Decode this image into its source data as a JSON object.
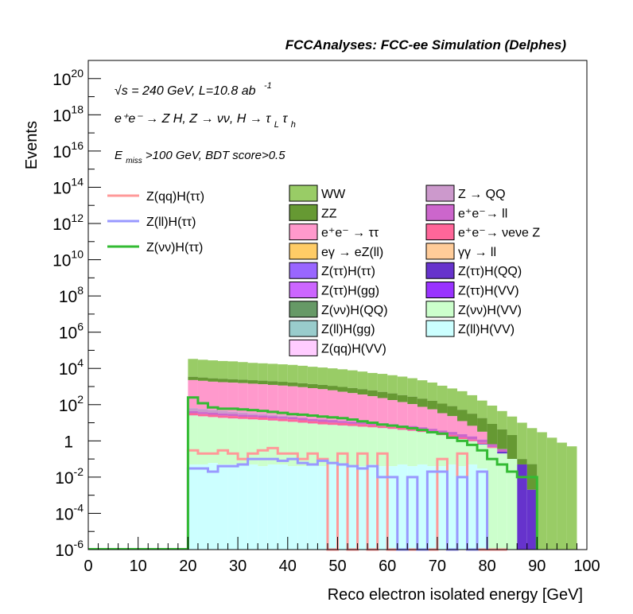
{
  "chart_data": {
    "type": "bar",
    "title": "FCCAnalyses: FCC-ee Simulation (Delphes)",
    "xlabel": "Reco electron isolated energy [GeV]",
    "ylabel": "Events",
    "xlim": [
      0,
      100
    ],
    "ylim": [
      1e-06,
      1e+21
    ],
    "y_scale": "log",
    "x_ticks": [
      "0",
      "10",
      "20",
      "30",
      "40",
      "50",
      "60",
      "70",
      "80",
      "90",
      "100"
    ],
    "y_ticks": [
      {
        "base": "10",
        "exp": "-6"
      },
      {
        "base": "10",
        "exp": "-4"
      },
      {
        "base": "10",
        "exp": "-2"
      },
      {
        "base": "1",
        "exp": ""
      },
      {
        "base": "10",
        "exp": "2"
      },
      {
        "base": "10",
        "exp": "4"
      },
      {
        "base": "10",
        "exp": "6"
      },
      {
        "base": "10",
        "exp": "8"
      },
      {
        "base": "10",
        "exp": "10"
      },
      {
        "base": "10",
        "exp": "12"
      },
      {
        "base": "10",
        "exp": "14"
      },
      {
        "base": "10",
        "exp": "16"
      },
      {
        "base": "10",
        "exp": "18"
      },
      {
        "base": "10",
        "exp": "20"
      }
    ],
    "annotations": {
      "line1": "√s = 240 GeV, L=10.8 ab",
      "line1_sup": "-1",
      "line2": "e⁺e⁻ → Z H, Z → νν, H → τ",
      "line2_sub_L": "L",
      "line2_tau": "τ",
      "line2_sub_h": "h",
      "line3_E": "E",
      "line3_sub": "miss",
      "line3_rest": ">100 GeV, BDT score>0.5"
    },
    "bin_width": 2,
    "stack": [
      {
        "name": "WW",
        "color": "#99cc66",
        "x": [
          20,
          22,
          24,
          26,
          28,
          30,
          32,
          34,
          36,
          38,
          40,
          42,
          44,
          46,
          48,
          50,
          52,
          54,
          56,
          58,
          60,
          62,
          64,
          66,
          68,
          70,
          72,
          74,
          76,
          78,
          80,
          82,
          84,
          86,
          88,
          90,
          92,
          94,
          96
        ],
        "values": [
          30000,
          27000,
          25000,
          23000,
          22000,
          20000,
          18000,
          17000,
          16000,
          15000,
          14000,
          12500,
          11000,
          10000,
          9000,
          8000,
          7000,
          6000,
          5000,
          4500,
          3800,
          3200,
          2600,
          2000,
          1500,
          1000,
          700,
          500,
          300,
          150,
          80,
          40,
          20,
          10,
          5,
          3,
          1.5,
          0.8,
          0.5
        ]
      },
      {
        "name": "ZZ",
        "color": "#669933",
        "x": [
          20,
          22,
          24,
          26,
          28,
          30,
          32,
          34,
          36,
          38,
          40,
          42,
          44,
          46,
          48,
          50,
          52,
          54,
          56,
          58,
          60,
          62,
          64,
          66,
          68,
          70,
          72,
          74,
          76,
          78,
          80,
          82,
          84,
          86,
          88
        ],
        "values": [
          1200,
          1100,
          1000,
          950,
          900,
          850,
          800,
          780,
          750,
          700,
          650,
          600,
          560,
          520,
          480,
          440,
          400,
          360,
          320,
          280,
          240,
          200,
          170,
          140,
          110,
          80,
          60,
          40,
          25,
          15,
          8,
          4,
          2,
          0.05,
          0.05
        ]
      },
      {
        "name": "e⁺e⁻ → ττ",
        "color": "#ff99cc",
        "x": [
          20,
          22,
          24,
          26,
          28,
          30,
          32,
          34,
          36,
          38,
          40,
          42,
          44,
          46,
          48,
          50,
          52,
          54,
          56,
          58,
          60,
          62,
          64,
          66,
          68,
          70,
          72,
          74,
          76,
          78
        ],
        "values": [
          2200,
          2000,
          1800,
          1700,
          1600,
          1500,
          1400,
          1300,
          1200,
          1100,
          1000,
          900,
          800,
          700,
          600,
          500,
          420,
          350,
          280,
          220,
          170,
          130,
          100,
          70,
          50,
          30,
          20,
          10,
          5,
          2
        ]
      },
      {
        "name": "eγ → eZ(ll)",
        "color": "#ffcc66",
        "x": [
          20,
          22,
          24,
          26,
          28,
          30,
          32,
          34,
          36,
          38,
          40,
          42,
          44,
          46,
          48,
          50
        ],
        "values": [
          0.3,
          0.2,
          0.4,
          0.3,
          0.2,
          0.3,
          0.25,
          0.2,
          0.3,
          0.15,
          0.2,
          0.3,
          0.2,
          0.15,
          0.2,
          0.1
        ]
      },
      {
        "name": "Z(ττ)H(ττ)",
        "color": "#9966ff",
        "x": [
          20,
          22,
          24,
          26,
          28,
          30,
          32,
          34,
          36,
          38,
          40,
          42,
          44,
          46,
          48,
          50,
          52,
          54,
          56,
          58
        ],
        "values": [
          0.5,
          0.45,
          0.4,
          0.4,
          0.35,
          0.35,
          0.3,
          0.3,
          0.3,
          0.25,
          0.25,
          0.2,
          0.2,
          0.18,
          0.15,
          0.12,
          0.1,
          0.08,
          0.06,
          0.04
        ]
      },
      {
        "name": "Z(ττ)H(gg)",
        "color": "#cc66ff",
        "x": [
          20,
          22,
          24,
          26,
          28,
          30,
          32,
          34,
          36,
          38,
          40,
          42,
          44,
          46,
          48,
          50
        ],
        "values": [
          0.2,
          0.18,
          0.16,
          0.15,
          0.14,
          0.12,
          0.11,
          0.1,
          0.09,
          0.08,
          0.07,
          0.06,
          0.05,
          0.04,
          0.03,
          0.02
        ]
      },
      {
        "name": "Z(νν)H(QQ)",
        "color": "#669966",
        "x": [
          20,
          22,
          24,
          26,
          28,
          30
        ],
        "values": [
          0.1,
          0.08,
          0.05,
          0.03,
          0.02,
          0.01
        ]
      },
      {
        "name": "Z(ll)H(gg)",
        "color": "#99cccc",
        "x": [
          28,
          30,
          32
        ],
        "values": [
          0.01,
          0.008,
          0.005
        ]
      },
      {
        "name": "Z(qq)H(VV)",
        "color": "#ffccff",
        "x": [
          30,
          32,
          34
        ],
        "values": [
          0.01,
          0.008,
          0.006
        ]
      },
      {
        "name": "Z → QQ",
        "color": "#cc99cc",
        "x": [
          20,
          22,
          24,
          26,
          28,
          30,
          32,
          34,
          36,
          38,
          40
        ],
        "values": [
          20,
          18,
          15,
          12,
          10,
          8,
          6,
          5,
          4,
          3,
          2
        ]
      },
      {
        "name": "e⁺e⁻→ ll",
        "color": "#cc66cc",
        "x": [
          20,
          22,
          24,
          26,
          28,
          30,
          32,
          34,
          36,
          38,
          40,
          42,
          44,
          46,
          48,
          50,
          52,
          54,
          56,
          58,
          60,
          62,
          64,
          66,
          68,
          70,
          72,
          74,
          76,
          78,
          80,
          82
        ],
        "values": [
          10,
          9,
          8,
          8,
          7,
          7,
          6,
          6,
          6,
          5,
          5,
          5,
          4,
          4,
          4,
          3,
          3,
          3,
          3,
          2.5,
          2.5,
          2,
          2,
          1.8,
          1.5,
          1.2,
          1,
          0.8,
          0.6,
          0.4,
          0.2,
          0.1
        ]
      },
      {
        "name": "e⁺e⁻→ νeνe Z",
        "color": "#ff6699",
        "x": [
          20,
          22,
          24,
          26,
          28,
          30,
          32,
          34,
          36,
          38,
          40,
          42,
          44,
          46,
          48,
          50,
          52,
          54,
          56,
          58,
          60,
          62,
          64,
          66,
          68,
          70,
          72,
          74,
          76,
          78,
          80
        ],
        "values": [
          8,
          7,
          7,
          6,
          6,
          5,
          5,
          5,
          4,
          4,
          4,
          3.5,
          3,
          3,
          2.5,
          2.5,
          2,
          2,
          1.8,
          1.5,
          1.3,
          1.1,
          1,
          0.8,
          0.6,
          0.5,
          0.4,
          0.3,
          0.2,
          0.1,
          0.05
        ]
      },
      {
        "name": "γγ → ll",
        "color": "#ffcc99",
        "x": [
          20,
          22,
          24,
          26,
          28,
          30,
          32,
          34,
          36,
          38,
          40
        ],
        "values": [
          0.4,
          0.5,
          0.3,
          0.4,
          0.3,
          0.2,
          0.3,
          0.2,
          0.2,
          0.1,
          0.1
        ]
      },
      {
        "name": "Z(ττ)H(QQ)",
        "color": "#6633cc",
        "x": [
          20,
          22,
          24,
          26,
          28,
          30,
          32,
          34,
          36,
          38,
          40,
          42,
          44,
          46,
          48,
          50,
          52,
          54,
          56,
          58,
          60,
          62,
          64,
          66,
          68,
          70,
          72,
          74,
          76,
          78,
          80,
          82,
          84,
          86,
          88
        ],
        "values": [
          0.08,
          0.05,
          0.002,
          0.1,
          0.01,
          0.003,
          0.06,
          0.02,
          0.05,
          0.001,
          0.08,
          0.02,
          0.04,
          0.001,
          0.03,
          0.002,
          0.05,
          0.001,
          0.02,
          0.03,
          0.02,
          0.004,
          0.05,
          0.02,
          0.003,
          0.001,
          0.06,
          0.004,
          0.02,
          0.05,
          0.005,
          0.05,
          0.001,
          0.05,
          0.002
        ]
      },
      {
        "name": "Z(ττ)H(VV)",
        "color": "#9933ff",
        "x": [
          20,
          22,
          24,
          26,
          28,
          30,
          32,
          34,
          36,
          38,
          40,
          42,
          44,
          46,
          48,
          50,
          52,
          54,
          56,
          58,
          60,
          62,
          64,
          66,
          68,
          70,
          72,
          74,
          76,
          78
        ],
        "values": [
          0.3,
          0.25,
          0.25,
          0.2,
          0.2,
          0.18,
          0.16,
          0.15,
          0.14,
          0.12,
          0.11,
          0.1,
          0.1,
          0.09,
          0.08,
          0.08,
          0.07,
          0.06,
          0.05,
          0.05,
          0.04,
          0.03,
          0.03,
          0.02,
          0.02,
          0.01,
          0.01,
          0.008,
          0.005,
          0.003
        ]
      },
      {
        "name": "Z(νν)H(VV)",
        "color": "#ccffcc",
        "x": [
          20,
          22,
          24,
          26,
          28,
          30,
          32,
          34,
          36,
          38,
          40,
          42,
          44,
          46,
          48,
          50,
          52,
          54,
          56,
          58,
          60,
          62,
          64,
          66,
          68,
          70,
          72,
          74,
          76,
          78,
          80,
          82,
          84
        ],
        "values": [
          25,
          22,
          20,
          18,
          17,
          16,
          15,
          14,
          13,
          12,
          11,
          10,
          9,
          8,
          7.5,
          7,
          6.5,
          6,
          5.5,
          5,
          4.5,
          4,
          3.5,
          3,
          2.5,
          2,
          1.6,
          1.2,
          0.9,
          0.6,
          0.4,
          0.2,
          0.1
        ]
      },
      {
        "name": "Z(ll)H(VV)",
        "color": "#ccffff",
        "x": [
          20,
          22,
          24,
          26,
          28,
          30,
          32,
          34,
          36,
          38,
          40,
          42,
          44,
          46,
          48,
          50,
          52,
          54,
          56,
          58,
          60,
          62,
          64,
          66,
          68,
          70,
          72,
          74,
          76,
          78
        ],
        "values": [
          0.05,
          0.05,
          0.06,
          0.05,
          0.05,
          0.05,
          0.05,
          0.04,
          0.05,
          0.05,
          0.04,
          0.04,
          0.05,
          0.04,
          0.05,
          0.05,
          0.04,
          0.04,
          0.05,
          0.04,
          0.04,
          0.05,
          0.04,
          0.05,
          0.04,
          0.04,
          0.05,
          0.04,
          0.05,
          0.03
        ]
      }
    ],
    "signals": [
      {
        "name": "Z(qq)H(ττ)",
        "color": "#ff9999",
        "x": [
          20,
          22,
          24,
          26,
          28,
          30,
          32,
          34,
          36,
          38,
          40,
          42,
          44,
          46,
          48,
          50,
          52,
          54,
          56,
          58,
          60,
          62,
          64,
          66,
          68,
          70,
          72,
          74,
          76,
          78,
          80,
          82
        ],
        "values": [
          0.3,
          0.2,
          0.2,
          0.3,
          0.2,
          0.1,
          0.2,
          0.3,
          0.4,
          0.2,
          0.2,
          0.1,
          0.2,
          0.1,
          1e-06,
          0.2,
          1e-06,
          0.2,
          1e-06,
          0.2,
          1e-06,
          1e-06,
          1e-06,
          1e-06,
          1e-06,
          0.1,
          1e-06,
          0.2,
          1e-06,
          1e-06,
          1e-06,
          1e-06
        ]
      },
      {
        "name": "Z(ll)H(ττ)",
        "color": "#9999ff",
        "x": [
          20,
          22,
          24,
          26,
          28,
          30,
          32,
          34,
          36,
          38,
          40,
          42,
          44,
          46,
          48,
          50,
          52,
          54,
          56,
          58,
          60,
          62,
          64,
          66,
          68,
          70,
          72,
          74,
          76,
          78
        ],
        "values": [
          0.03,
          0.03,
          0.02,
          0.04,
          0.04,
          0.05,
          0.1,
          0.1,
          0.1,
          0.08,
          0.1,
          0.06,
          0.05,
          0.08,
          0.06,
          0.05,
          0.04,
          0.03,
          0.04,
          0.01,
          0.01,
          1e-06,
          0.01,
          1e-06,
          0.02,
          0.02,
          1e-06,
          0.01,
          1e-06,
          0.02
        ]
      },
      {
        "name": "Z(νν)H(ττ)",
        "color": "#33bb33",
        "x": [
          20,
          22,
          24,
          26,
          28,
          30,
          32,
          34,
          36,
          38,
          40,
          42,
          44,
          46,
          48,
          50,
          52,
          54,
          56,
          58,
          60,
          62,
          64,
          66,
          68,
          70,
          72,
          74,
          76,
          78,
          80,
          82,
          84,
          86,
          88
        ],
        "values": [
          250,
          120,
          70,
          60,
          60,
          55,
          50,
          45,
          40,
          35,
          30,
          28,
          25,
          22,
          20,
          18,
          15,
          12,
          10,
          8,
          7,
          6,
          5,
          4,
          3,
          2.5,
          1.5,
          1.0,
          0.6,
          0.3,
          0.1,
          0.05,
          0.02,
          0.01,
          0.01
        ]
      }
    ],
    "legend_placement": "top-right",
    "grid": false
  }
}
